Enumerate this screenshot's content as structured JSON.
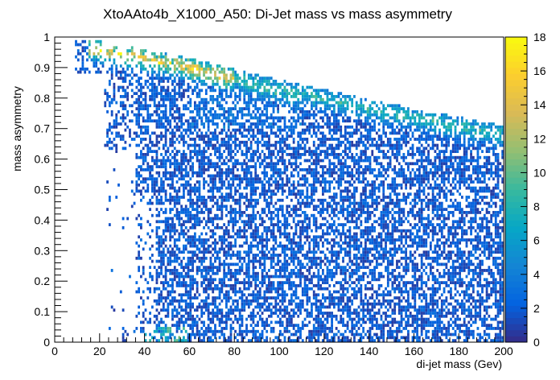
{
  "chart_data": {
    "type": "heatmap",
    "title": "XtoAAto4b_X1000_A50: Di-Jet mass vs mass asymmetry",
    "xlabel": "di-jet mass (Gev)",
    "ylabel": "mass asymmetry",
    "xlim": [
      0,
      200
    ],
    "ylim": [
      0,
      1
    ],
    "x_ticks": [
      "0",
      "20",
      "40",
      "60",
      "80",
      "100",
      "120",
      "140",
      "160",
      "180",
      "200"
    ],
    "y_ticks": [
      "0",
      "0.1",
      "0.2",
      "0.3",
      "0.4",
      "0.5",
      "0.6",
      "0.7",
      "0.8",
      "0.9",
      "1"
    ],
    "colorbar": {
      "range": [
        0,
        18
      ],
      "ticks": [
        "0",
        "2",
        "4",
        "6",
        "8",
        "10",
        "12",
        "14",
        "16",
        "18"
      ],
      "palette": [
        "#352a87",
        "#0363e1",
        "#1485d4",
        "#06a7c6",
        "#38b99e",
        "#92bf73",
        "#d9ba56",
        "#fcce2e",
        "#f9fb0e"
      ]
    },
    "grid": false,
    "bins": {
      "x": 200,
      "y": 100
    },
    "density_features": {
      "main_band": {
        "description_points": [
          [
            18,
            0.96
          ],
          [
            60,
            0.9
          ],
          [
            100,
            0.83
          ],
          [
            150,
            0.75
          ],
          [
            200,
            0.68
          ]
        ],
        "peak_value": 16
      },
      "high_density_region": {
        "x": [
          40,
          60
        ],
        "y": [
          0.0,
          0.05
        ],
        "peak_value": 10
      },
      "typical_background_value": 2
    }
  }
}
